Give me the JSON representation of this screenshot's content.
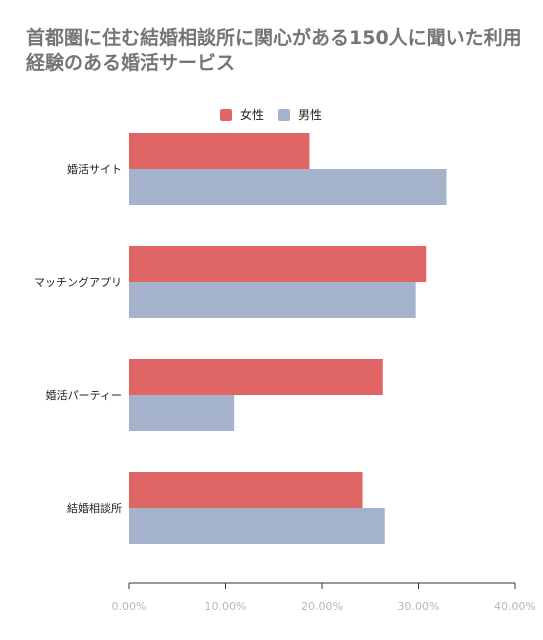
{
  "chart_data": {
    "type": "bar",
    "orientation": "horizontal",
    "title": "首都圏に住む結婚相談所に関心がある150人に聞いた利用経験のある婚活サービス",
    "categories": [
      "婚活サイト",
      "マッチングアプリ",
      "婚活パーティー",
      "結婚相談所"
    ],
    "series": [
      {
        "name": "女性",
        "values": [
          18.7,
          30.8,
          26.3,
          24.2
        ]
      },
      {
        "name": "男性",
        "values": [
          32.9,
          29.7,
          10.9,
          26.5
        ]
      }
    ],
    "xlim": [
      0,
      40
    ],
    "xticks": [
      "0.00%",
      "10.00%",
      "20.00%",
      "30.00%",
      "40.00%"
    ],
    "legend_position": "top",
    "grid": false,
    "colors": {
      "女性": "#e06666",
      "男性": "#a4b2cc"
    }
  }
}
